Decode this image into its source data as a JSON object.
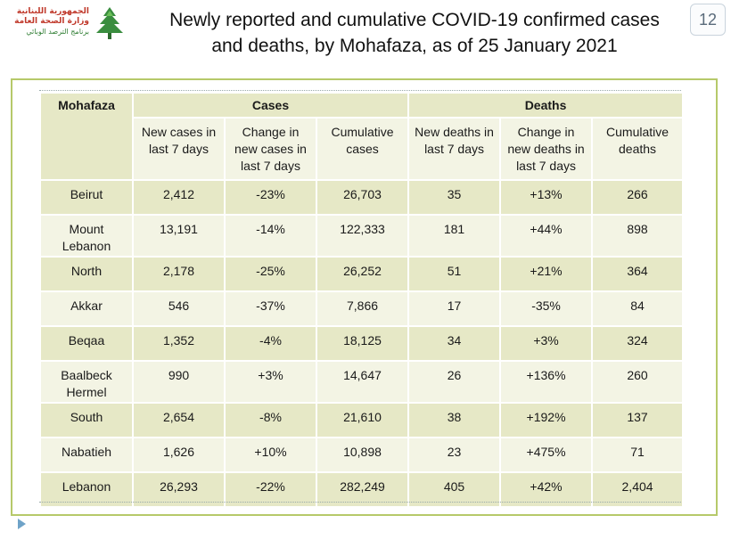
{
  "logo": {
    "line1": "الجمهورية اللبنانية",
    "line2": "وزارة الصحة العامة",
    "line3": "برنامج الترصد الوبائي",
    "icon": "cedar-tree-icon",
    "colors": {
      "red": "#c0392b",
      "green": "#2e7d32"
    }
  },
  "title": {
    "line1": "Newly reported and cumulative COVID-19 confirmed cases",
    "line2": "and deaths, by Mohafaza, as of 25 January 2021"
  },
  "page_number": "12",
  "table": {
    "group_headers": {
      "region": "Mohafaza",
      "cases": "Cases",
      "deaths": "Deaths"
    },
    "columns": [
      "New cases in last 7 days",
      "Change in new cases in last 7 days",
      "Cumulative cases",
      "New deaths in last 7 days",
      "Change in new deaths in last 7 days",
      "Cumulative deaths"
    ],
    "rows": [
      {
        "region": "Beirut",
        "values": [
          "2,412",
          "-23%",
          "26,703",
          "35",
          "+13%",
          "266"
        ]
      },
      {
        "region": "Mount Lebanon",
        "values": [
          "13,191",
          "-14%",
          "122,333",
          "181",
          "+44%",
          "898"
        ]
      },
      {
        "region": "North",
        "values": [
          "2,178",
          "-25%",
          "26,252",
          "51",
          "+21%",
          "364"
        ]
      },
      {
        "region": "Akkar",
        "values": [
          "546",
          "-37%",
          "7,866",
          "17",
          "-35%",
          "84"
        ]
      },
      {
        "region": "Beqaa",
        "values": [
          "1,352",
          "-4%",
          "18,125",
          "34",
          "+3%",
          "324"
        ]
      },
      {
        "region": "Baalbeck Hermel",
        "values": [
          "990",
          "+3%",
          "14,647",
          "26",
          "+136%",
          "260"
        ]
      },
      {
        "region": "South",
        "values": [
          "2,654",
          "-8%",
          "21,610",
          "38",
          "+192%",
          "137"
        ]
      },
      {
        "region": "Nabatieh",
        "values": [
          "1,626",
          "+10%",
          "10,898",
          "23",
          "+475%",
          "71"
        ]
      },
      {
        "region": "Lebanon",
        "values": [
          "26,293",
          "-22%",
          "282,249",
          "405",
          "+42%",
          "2,404"
        ]
      }
    ]
  },
  "colors": {
    "frame_border": "#b6c96a",
    "row_dark": "#e6e8c6",
    "row_light": "#f3f4e4"
  }
}
